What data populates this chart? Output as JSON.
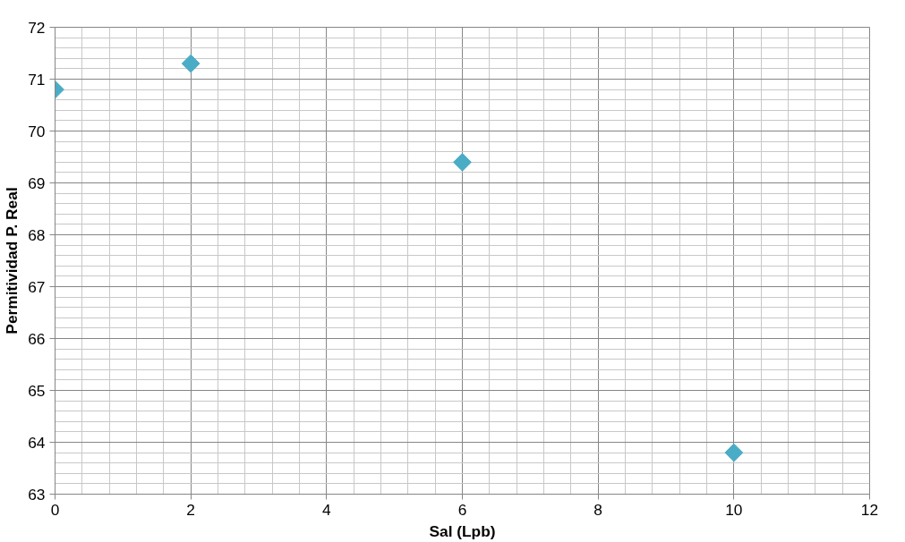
{
  "chart_data": {
    "type": "scatter",
    "xlabel": "Sal (Lpb)",
    "ylabel": "Permitividad P. Real",
    "x": [
      0,
      2,
      6,
      10
    ],
    "series": [
      {
        "color": "#4bacc6",
        "values": [
          70.8,
          71.3,
          69.4,
          63.8
        ]
      }
    ],
    "xlim": [
      0,
      12
    ],
    "xticks": [
      0,
      2,
      4,
      6,
      8,
      10,
      12
    ],
    "ylim": [
      63,
      72
    ],
    "yticks": [
      63,
      64,
      65,
      66,
      67,
      68,
      69,
      70,
      71,
      72
    ],
    "grid": true,
    "marker": "diamond"
  }
}
